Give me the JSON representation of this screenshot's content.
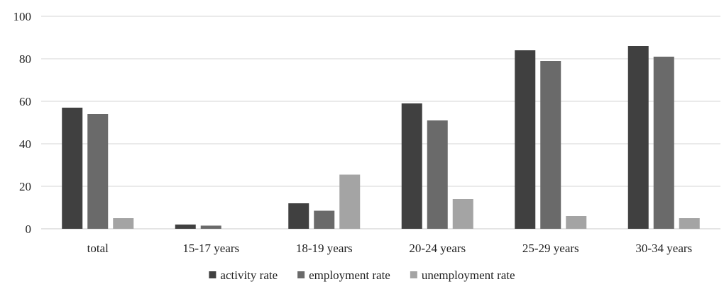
{
  "chart_data": {
    "type": "bar",
    "title": "",
    "xlabel": "",
    "ylabel": "",
    "categories": [
      "total",
      "15-17 years",
      "18-19 years",
      "20-24 years",
      "25-29 years",
      "30-34 years"
    ],
    "series": [
      {
        "name": "activity rate",
        "color": "#404040",
        "values": [
          57,
          2,
          12,
          59,
          84,
          86
        ]
      },
      {
        "name": "employment rate",
        "color": "#6a6a6a",
        "values": [
          54,
          1.5,
          8.5,
          51,
          79,
          81
        ]
      },
      {
        "name": "unemployment rate",
        "color": "#a4a4a4",
        "values": [
          5,
          0,
          25.5,
          14,
          6,
          5
        ]
      }
    ],
    "ylim": [
      0,
      100
    ],
    "yticks": [
      "0",
      "20",
      "40",
      "60",
      "80",
      "100"
    ],
    "grid": true,
    "legend_position": "bottom"
  }
}
